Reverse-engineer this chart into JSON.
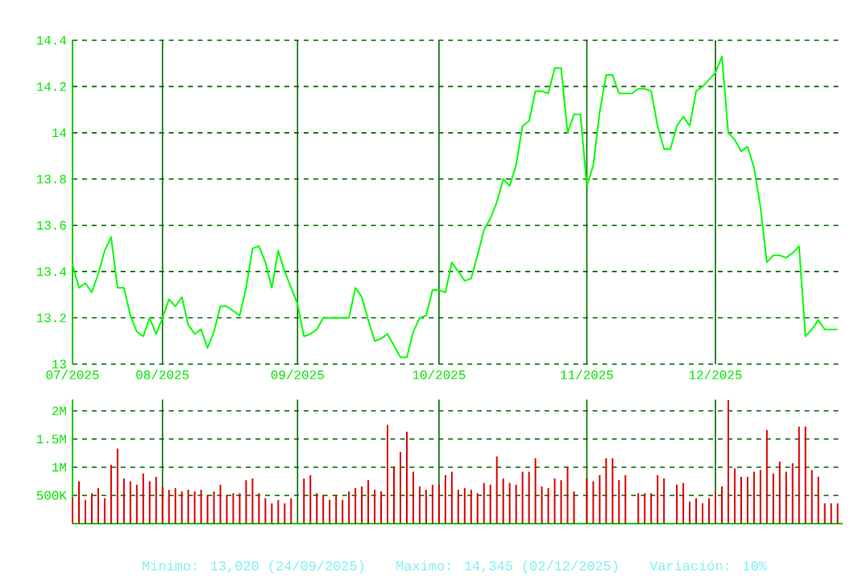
{
  "chart_data": [
    {
      "type": "line",
      "categories": [
        "07/2025",
        null,
        null,
        null,
        null,
        null,
        null,
        null,
        null,
        null,
        null,
        null,
        null,
        null,
        "08/2025",
        null,
        null,
        null,
        null,
        null,
        null,
        null,
        null,
        null,
        null,
        null,
        null,
        null,
        null,
        null,
        null,
        null,
        null,
        null,
        null,
        "09/2025",
        null,
        null,
        null,
        null,
        null,
        null,
        null,
        null,
        null,
        null,
        null,
        null,
        null,
        null,
        null,
        null,
        null,
        null,
        null,
        null,
        null,
        "10/2025",
        null,
        null,
        null,
        null,
        null,
        null,
        null,
        null,
        null,
        null,
        null,
        null,
        null,
        null,
        null,
        null,
        null,
        null,
        null,
        null,
        null,
        null,
        "11/2025",
        null,
        null,
        null,
        null,
        null,
        null,
        null,
        null,
        null,
        null,
        null,
        null,
        null,
        null,
        null,
        null,
        null,
        null,
        null,
        "12/2025",
        null,
        null,
        null,
        null,
        null,
        null,
        null,
        null,
        null,
        null,
        null,
        null,
        null,
        null,
        null,
        null,
        null,
        null,
        null
      ],
      "series": [
        {
          "color": "#00ff00",
          "values": [
            13.43,
            13.33,
            13.35,
            13.31,
            13.39,
            13.49,
            13.55,
            13.33,
            13.33,
            13.21,
            13.14,
            13.12,
            13.2,
            13.13,
            13.2,
            13.28,
            13.25,
            13.29,
            13.17,
            13.13,
            13.15,
            13.07,
            13.14,
            13.25,
            13.25,
            13.23,
            13.21,
            13.33,
            13.5,
            13.51,
            13.44,
            13.33,
            13.49,
            13.4,
            13.33,
            13.26,
            13.12,
            13.13,
            13.15,
            13.2,
            13.2,
            13.2,
            13.2,
            13.2,
            13.33,
            13.29,
            13.19,
            13.1,
            13.11,
            13.13,
            13.08,
            13.03,
            13.03,
            13.14,
            13.2,
            13.21,
            13.32,
            13.32,
            13.31,
            13.44,
            13.4,
            13.36,
            13.37,
            13.47,
            13.58,
            13.63,
            13.7,
            13.8,
            13.77,
            13.86,
            14.03,
            14.05,
            14.18,
            14.18,
            14.17,
            14.28,
            14.28,
            14.0,
            14.08,
            14.08,
            13.77,
            13.86,
            14.09,
            14.25,
            14.25,
            14.17,
            14.17,
            14.17,
            14.19,
            14.19,
            14.18,
            14.03,
            13.93,
            13.93,
            14.03,
            14.07,
            14.03,
            14.18,
            14.2,
            14.23,
            14.26,
            14.33,
            14.0,
            13.97,
            13.92,
            13.94,
            13.85,
            13.68,
            13.44,
            13.47,
            13.47,
            13.46,
            13.48,
            13.51,
            13.12,
            13.15,
            13.19,
            13.15,
            13.15,
            13.15
          ]
        }
      ],
      "ylim": [
        13,
        14.4
      ],
      "yticks": [
        13,
        13.2,
        13.4,
        13.6,
        13.8,
        14,
        14.2,
        14.4
      ],
      "grid": true
    },
    {
      "type": "bar",
      "categories": [
        null,
        null,
        null,
        null,
        null,
        null,
        null,
        null,
        null,
        null,
        null,
        null,
        null,
        null,
        null,
        null,
        null,
        null,
        null,
        null,
        null,
        null,
        null,
        null,
        null,
        null,
        null,
        null,
        null,
        null,
        null,
        null,
        null,
        null,
        null,
        null,
        null,
        null,
        null,
        null,
        null,
        null,
        null,
        null,
        null,
        null,
        null,
        null,
        null,
        null,
        null,
        null,
        null,
        null,
        null,
        null,
        null,
        null,
        null,
        null,
        null,
        null,
        null,
        null,
        null,
        null,
        null,
        null,
        null,
        null,
        null,
        null,
        null,
        null,
        null,
        null,
        null,
        null,
        null,
        null,
        null,
        null,
        null,
        null,
        null,
        null,
        null,
        null,
        null,
        null,
        null,
        null,
        null,
        null,
        null,
        null,
        null,
        null,
        null,
        null,
        null,
        null,
        null,
        null,
        null,
        null,
        null,
        null,
        null,
        null,
        null,
        null,
        null,
        null,
        null,
        null,
        null,
        null,
        null,
        null
      ],
      "color": "#dd0000",
      "values": [
        450000,
        750000,
        420000,
        540000,
        630000,
        450000,
        1040000,
        1330000,
        800000,
        750000,
        690000,
        890000,
        750000,
        830000,
        650000,
        600000,
        630000,
        570000,
        600000,
        570000,
        600000,
        510000,
        570000,
        690000,
        510000,
        540000,
        540000,
        770000,
        800000,
        540000,
        450000,
        360000,
        420000,
        360000,
        450000,
        null,
        800000,
        860000,
        540000,
        510000,
        420000,
        510000,
        420000,
        570000,
        630000,
        660000,
        770000,
        600000,
        570000,
        1750000,
        1010000,
        1270000,
        1630000,
        920000,
        660000,
        600000,
        690000,
        690000,
        860000,
        920000,
        600000,
        630000,
        600000,
        540000,
        720000,
        690000,
        1190000,
        800000,
        720000,
        690000,
        920000,
        920000,
        1160000,
        660000,
        630000,
        800000,
        770000,
        1010000,
        570000,
        null,
        800000,
        750000,
        860000,
        1160000,
        1160000,
        770000,
        860000,
        null,
        540000,
        540000,
        540000,
        860000,
        800000,
        null,
        690000,
        720000,
        390000,
        450000,
        360000,
        450000,
        570000,
        660000,
        2190000,
        980000,
        830000,
        830000,
        920000,
        950000,
        1660000,
        890000,
        1100000,
        920000,
        1070000,
        1720000,
        1720000,
        950000,
        830000,
        360000,
        360000,
        360000
      ],
      "ylim": [
        0,
        2200000
      ],
      "yticks": [
        {
          "value": 500000,
          "label": "500K"
        },
        {
          "value": 1000000,
          "label": "1M"
        },
        {
          "value": 1500000,
          "label": "1.5M"
        },
        {
          "value": 2000000,
          "label": "2M"
        }
      ],
      "grid": true,
      "tick_labels": "y",
      "annotations": [
        "Minimo: 13,020 (24/09/2025)",
        "Maximo: 14,345 (02/12/2025)",
        "Variación: 10%"
      ]
    }
  ]
}
